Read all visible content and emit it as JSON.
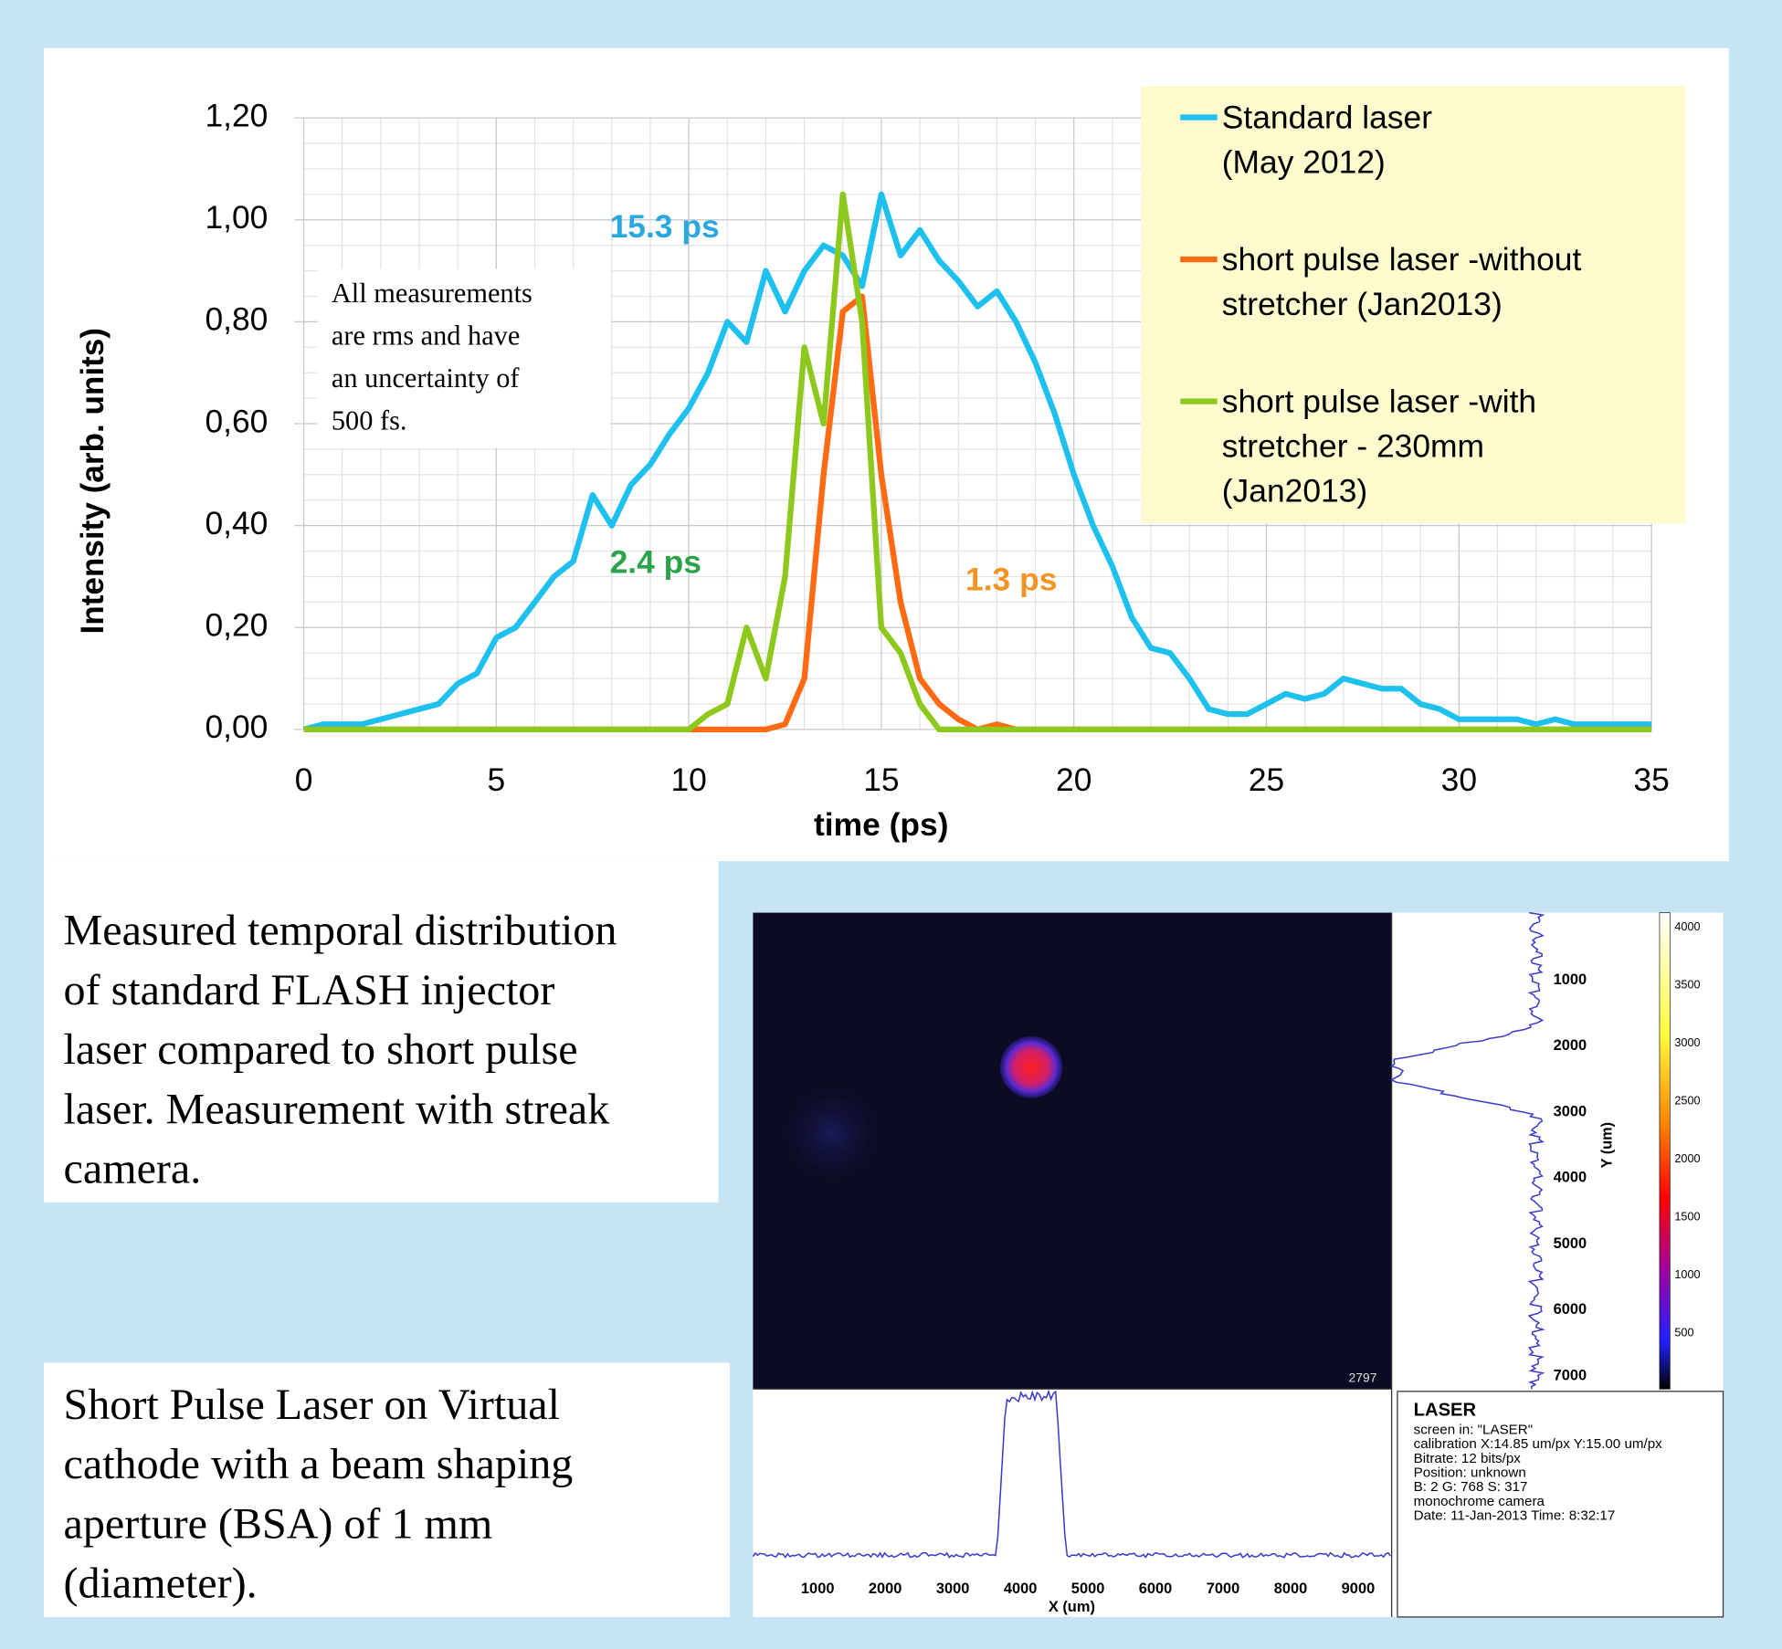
{
  "chart_data": {
    "type": "line",
    "x_label": "time (ps)",
    "y_label": "Intensity (arb. units)",
    "x": [
      0,
      0.5,
      1,
      1.5,
      2,
      2.5,
      3,
      3.5,
      4,
      4.5,
      5,
      5.5,
      6,
      6.5,
      7,
      7.5,
      8,
      8.5,
      9,
      9.5,
      10,
      10.5,
      11,
      11.5,
      12,
      12.5,
      13,
      13.5,
      14,
      14.5,
      15,
      15.5,
      16,
      16.5,
      17,
      17.5,
      18,
      18.5,
      19,
      19.5,
      20,
      20.5,
      21,
      21.5,
      22,
      22.5,
      23,
      23.5,
      24,
      24.5,
      25,
      25.5,
      26,
      26.5,
      27,
      27.5,
      28,
      28.5,
      29,
      29.5,
      30,
      30.5,
      31,
      31.5,
      32,
      32.5,
      33,
      33.5,
      34,
      34.5,
      35
    ],
    "series": [
      {
        "name": "Standard laser\n(May 2012)",
        "color": "#1ec0ee",
        "values": [
          0,
          0.01,
          0.01,
          0.01,
          0.02,
          0.03,
          0.04,
          0.05,
          0.09,
          0.11,
          0.18,
          0.2,
          0.25,
          0.3,
          0.33,
          0.46,
          0.4,
          0.48,
          0.52,
          0.58,
          0.63,
          0.7,
          0.8,
          0.76,
          0.9,
          0.82,
          0.9,
          0.95,
          0.93,
          0.87,
          1.05,
          0.93,
          0.98,
          0.92,
          0.88,
          0.83,
          0.86,
          0.8,
          0.72,
          0.62,
          0.5,
          0.4,
          0.32,
          0.22,
          0.16,
          0.15,
          0.1,
          0.04,
          0.03,
          0.03,
          0.05,
          0.07,
          0.06,
          0.07,
          0.1,
          0.09,
          0.08,
          0.08,
          0.05,
          0.04,
          0.02,
          0.02,
          0.02,
          0.02,
          0.01,
          0.02,
          0.01,
          0.01,
          0.01,
          0.01,
          0.01
        ]
      },
      {
        "name": "short pulse laser -without\nstretcher (Jan2013)",
        "color": "#ff6a13",
        "values": [
          0,
          0,
          0,
          0,
          0,
          0,
          0,
          0,
          0,
          0,
          0,
          0,
          0,
          0,
          0,
          0,
          0,
          0,
          0,
          0,
          0,
          0,
          0,
          0,
          0,
          0.01,
          0.1,
          0.5,
          0.82,
          0.85,
          0.5,
          0.25,
          0.1,
          0.05,
          0.02,
          0,
          0.01,
          0,
          0,
          0,
          0,
          0,
          0,
          0,
          0,
          0,
          0,
          0,
          0,
          0,
          0,
          0,
          0,
          0,
          0,
          0,
          0,
          0,
          0,
          0,
          0,
          0,
          0,
          0,
          0,
          0,
          0,
          0,
          0,
          0,
          0
        ]
      },
      {
        "name": "short pulse laser -with\nstretcher - 230mm\n(Jan2013)",
        "color": "#8dc81c",
        "values": [
          0,
          0,
          0,
          0,
          0,
          0,
          0,
          0,
          0,
          0,
          0,
          0,
          0,
          0,
          0,
          0,
          0,
          0,
          0,
          0,
          0,
          0.03,
          0.05,
          0.2,
          0.1,
          0.3,
          0.75,
          0.6,
          1.05,
          0.8,
          0.2,
          0.15,
          0.05,
          0,
          0,
          0,
          0,
          0,
          0,
          0,
          0,
          0,
          0,
          0,
          0,
          0,
          0,
          0,
          0,
          0,
          0,
          0,
          0,
          0,
          0,
          0,
          0,
          0,
          0,
          0,
          0,
          0,
          0,
          0,
          0,
          0,
          0,
          0,
          0,
          0,
          0
        ]
      }
    ],
    "xlim": [
      0,
      35
    ],
    "xticks": [
      0,
      5,
      10,
      15,
      20,
      25,
      30,
      35
    ],
    "ylim": [
      0,
      1.2
    ],
    "yticks": [
      {
        "value": 0,
        "label": "0,00"
      },
      {
        "value": 0.2,
        "label": "0,20"
      },
      {
        "value": 0.4,
        "label": "0,40"
      },
      {
        "value": 0.6,
        "label": "0,60"
      },
      {
        "value": 0.8,
        "label": "0,80"
      },
      {
        "value": 1,
        "label": "1,00"
      },
      {
        "value": 1.2,
        "label": "1,20"
      }
    ],
    "grid": true,
    "minor_grid": true,
    "legend": "upper right",
    "annotations": [
      {
        "text": "15.3 ps",
        "color": "#29a8e0"
      },
      {
        "text": "2.4 ps",
        "color": "#2aa34a"
      },
      {
        "text": "1.3 ps",
        "color": "#f39322"
      }
    ],
    "note": [
      "All measurements",
      "are rms and have",
      "an uncertainty of",
      "500 fs."
    ]
  },
  "captions": [
    [
      "Measured temporal distribution",
      "of standard FLASH injector",
      "laser compared to short pulse",
      "laser. Measurement with streak",
      "camera."
    ],
    [
      "Short Pulse Laser  on Virtual",
      "cathode with a beam shaping",
      "aperture (BSA) of 1 mm",
      "(diameter)."
    ]
  ],
  "camera": {
    "x_ticks": [
      1000,
      2000,
      3000,
      4000,
      5000,
      6000,
      7000,
      8000,
      9000
    ],
    "x_label": "X (um)",
    "y_ticks": [
      1000,
      2000,
      3000,
      4000,
      5000,
      6000,
      7000
    ],
    "y_label": "Y (um)",
    "colorbar_ticks": [
      4000,
      3500,
      3000,
      2500,
      2000,
      1500,
      1000,
      500
    ],
    "frame_label": "2797",
    "info_title": "LASER",
    "info": [
      "screen in: \"LASER\"",
      "calibration X:14.85 um/px  Y:15.00 um/px",
      "Bitrate: 12 bits/px",
      "Position: unknown",
      "B: 2      G: 768   S: 317",
      "monochrome camera",
      "Date: 11-Jan-2013     Time: 8:32:17"
    ]
  }
}
